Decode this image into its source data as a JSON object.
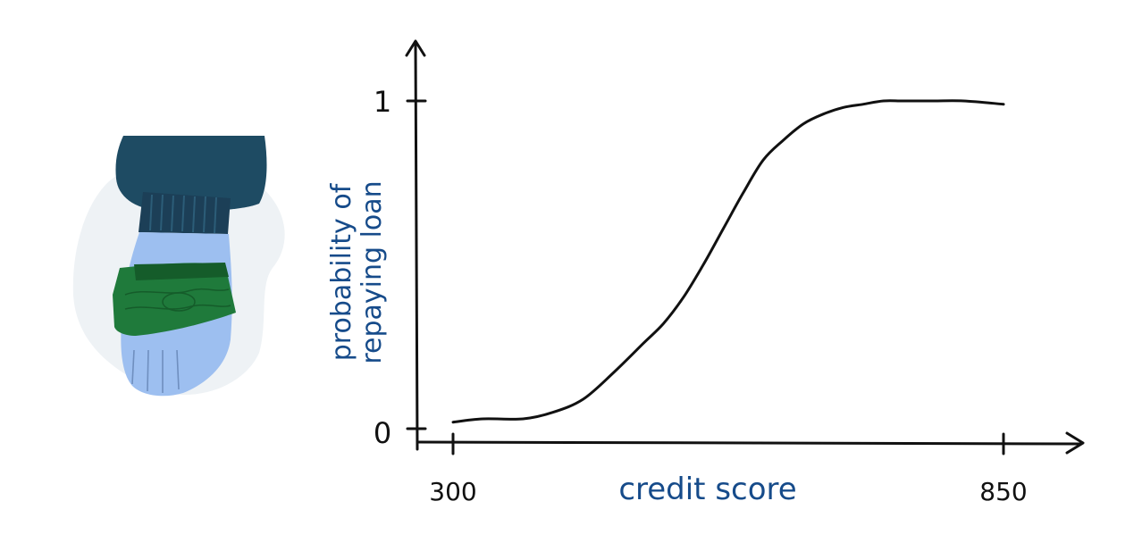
{
  "colors": {
    "ink": "#111111",
    "label_blue": "#164b8a",
    "sleeve": "#1e4b63",
    "cuff": "#1c3f57",
    "hand": "#9dbff0",
    "hand_lines": "#6f8fbf",
    "money": "#1f7a3b",
    "money_dark": "#155c2a",
    "blob": "#eef2f5"
  },
  "illustration": {
    "icon": "hand-holding-money-icon"
  },
  "chart_data": {
    "type": "line",
    "xlabel": "credit score",
    "ylabel_lines": [
      "probability of",
      "repaying loan"
    ],
    "x_ticks": [
      300,
      850
    ],
    "y_ticks": [
      0,
      1
    ],
    "xlim": [
      300,
      850
    ],
    "ylim": [
      0,
      1
    ],
    "series": [
      {
        "x": [
          300,
          330,
          370,
          400,
          430,
          460,
          490,
          510,
          530,
          550,
          570,
          590,
          610,
          630,
          650,
          670,
          690,
          710,
          730,
          750,
          780,
          810,
          850
        ],
        "y": [
          0.02,
          0.03,
          0.03,
          0.05,
          0.09,
          0.17,
          0.26,
          0.32,
          0.4,
          0.5,
          0.61,
          0.72,
          0.82,
          0.88,
          0.93,
          0.96,
          0.98,
          0.99,
          1.0,
          1.0,
          1.0,
          1.0,
          0.99
        ]
      }
    ]
  }
}
